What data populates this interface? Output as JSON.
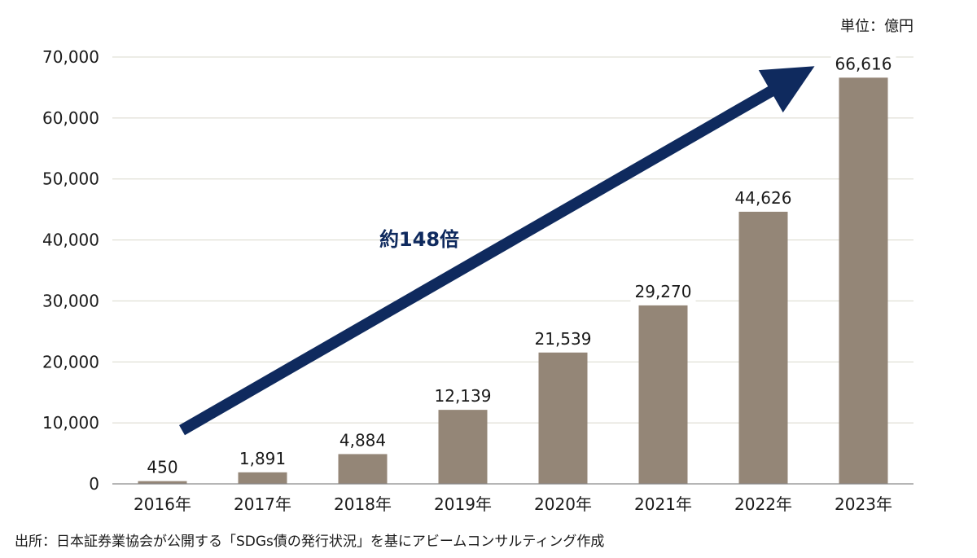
{
  "chart_data": {
    "type": "bar",
    "title": "",
    "unit_label": "単位：億円",
    "xlabel": "",
    "ylabel": "",
    "categories": [
      "2016年",
      "2017年",
      "2018年",
      "2019年",
      "2020年",
      "2021年",
      "2022年",
      "2023年"
    ],
    "values": [
      450,
      1891,
      4884,
      12139,
      21539,
      29270,
      44626,
      66616
    ],
    "value_labels": [
      "450",
      "1,891",
      "4,884",
      "12,139",
      "21,539",
      "29,270",
      "44,626",
      "66,616"
    ],
    "ylim": [
      0,
      70000
    ],
    "yticks": [
      0,
      10000,
      20000,
      30000,
      40000,
      50000,
      60000,
      70000
    ],
    "ytick_labels": [
      "0",
      "10,000",
      "20,000",
      "30,000",
      "40,000",
      "50,000",
      "60,000",
      "70,000"
    ],
    "grid": true,
    "annotation": {
      "text": "約148倍",
      "from_category": "2016年",
      "to_category": "2023年",
      "from_value": 8800,
      "to_value": 68500
    },
    "source": "出所：日本証券業協会が公開する「SDGs債の発行状況」を基にアビームコンサルティング作成"
  },
  "colors": {
    "bar": "#948677",
    "arrow": "#0f2a5e",
    "grid": "#d9d8cc",
    "axis": "#8a8a8a",
    "text": "#1a1a1a"
  }
}
